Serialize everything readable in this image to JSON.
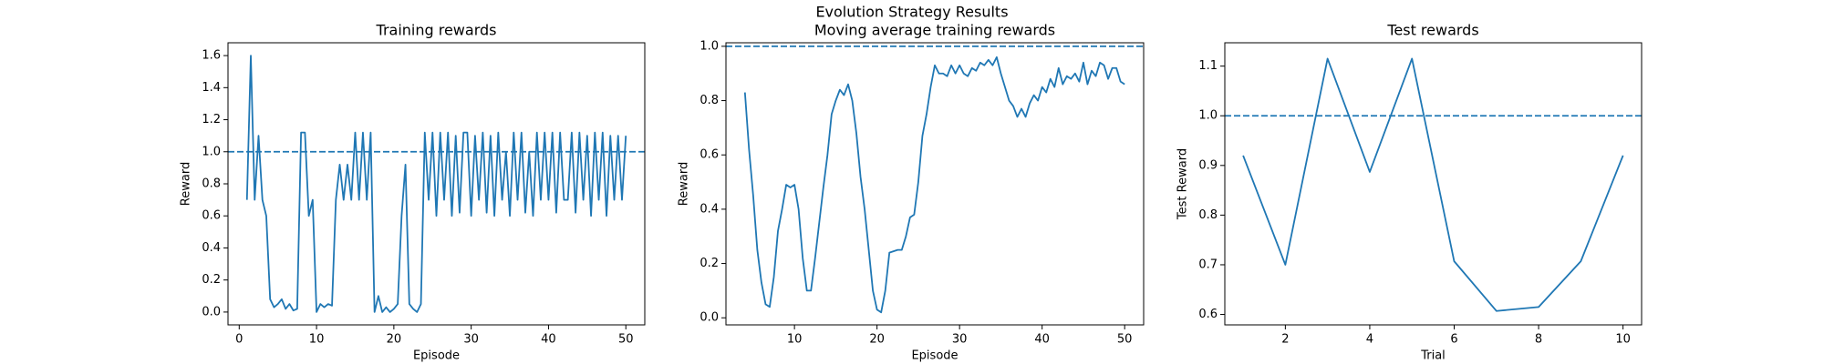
{
  "figure_title": "Evolution Strategy Results",
  "chart_data": [
    {
      "type": "line",
      "title": "Training rewards",
      "xlabel": "Episode",
      "ylabel": "Reward",
      "color": "#1f77b4",
      "x": [
        1,
        1.5,
        2,
        2.5,
        3,
        3.5,
        4,
        4.5,
        5,
        5.5,
        6,
        6.5,
        7,
        7.5,
        8,
        8.5,
        9,
        9.5,
        10,
        10.5,
        11,
        11.5,
        12,
        12.5,
        13,
        13.5,
        14,
        14.5,
        15,
        15.5,
        16,
        16.5,
        17,
        17.5,
        18,
        18.5,
        19,
        19.5,
        20,
        20.5,
        21,
        21.5,
        22,
        22.5,
        23,
        23.5,
        24,
        24.5,
        25,
        25.5,
        26,
        26.5,
        27,
        27.5,
        28,
        28.5,
        29,
        29.5,
        30,
        30.5,
        31,
        31.5,
        32,
        32.5,
        33,
        33.5,
        34,
        34.5,
        35,
        35.5,
        36,
        36.5,
        37,
        37.5,
        38,
        38.5,
        39,
        39.5,
        40,
        40.5,
        41,
        41.5,
        42,
        42.5,
        43,
        43.5,
        44,
        44.5,
        45,
        45.5,
        46,
        46.5,
        47,
        47.5,
        48,
        48.5,
        49,
        49.5,
        50
      ],
      "values": [
        0.7,
        1.6,
        0.7,
        1.1,
        0.7,
        0.6,
        0.08,
        0.03,
        0.05,
        0.08,
        0.02,
        0.05,
        0.01,
        0.02,
        1.12,
        1.12,
        0.6,
        0.7,
        0.0,
        0.05,
        0.03,
        0.05,
        0.04,
        0.7,
        0.92,
        0.7,
        0.92,
        0.7,
        1.12,
        0.7,
        1.12,
        0.7,
        1.12,
        0.0,
        0.1,
        0.0,
        0.03,
        0.0,
        0.02,
        0.05,
        0.6,
        0.92,
        0.05,
        0.02,
        0.0,
        0.05,
        1.12,
        0.7,
        1.12,
        0.6,
        1.12,
        0.7,
        1.12,
        0.6,
        1.1,
        0.62,
        1.12,
        1.12,
        0.6,
        1.1,
        0.7,
        1.12,
        0.62,
        1.1,
        0.6,
        1.12,
        0.7,
        1.0,
        0.6,
        1.12,
        0.7,
        1.12,
        0.62,
        1.0,
        0.6,
        1.12,
        0.7,
        1.12,
        0.7,
        1.12,
        0.62,
        1.12,
        0.7,
        0.7,
        1.12,
        0.62,
        1.12,
        0.7,
        1.1,
        0.6,
        1.12,
        0.7,
        1.12,
        0.6,
        1.1,
        0.7,
        1.1,
        0.7,
        1.1
      ],
      "hline": 1,
      "hline_style": "dashed",
      "xlim": [
        -1.45,
        52.45
      ],
      "ylim": [
        -0.08,
        1.68
      ],
      "xticks": [
        0,
        10,
        20,
        30,
        40,
        50
      ],
      "yticks": [
        {
          "value": 0,
          "label": "0.0"
        },
        0.2,
        0.4,
        0.6,
        0.8,
        {
          "value": 1,
          "label": "1.0"
        },
        1.2,
        1.4,
        1.6
      ]
    },
    {
      "type": "line",
      "title": "Moving average training rewards",
      "xlabel": "Episode",
      "ylabel": "Reward",
      "color": "#1f77b4",
      "x": [
        4,
        4.5,
        5,
        5.5,
        6,
        6.5,
        7,
        7.5,
        8,
        8.5,
        9,
        9.5,
        10,
        10.5,
        11,
        11.5,
        12,
        12.5,
        13,
        13.5,
        14,
        14.5,
        15,
        15.5,
        16,
        16.5,
        17,
        17.5,
        18,
        18.5,
        19,
        19.5,
        20,
        20.5,
        21,
        21.5,
        22,
        22.5,
        23,
        23.5,
        24,
        24.5,
        25,
        25.5,
        26,
        26.5,
        27,
        27.5,
        28,
        28.5,
        29,
        29.5,
        30,
        30.5,
        31,
        31.5,
        32,
        32.5,
        33,
        33.5,
        34,
        34.5,
        35,
        35.5,
        36,
        36.5,
        37,
        37.5,
        38,
        38.5,
        39,
        39.5,
        40,
        40.5,
        41,
        41.5,
        42,
        42.5,
        43,
        43.5,
        44,
        44.5,
        45,
        45.5,
        46,
        46.5,
        47,
        47.5,
        48,
        48.5,
        49,
        49.5,
        50
      ],
      "values": [
        0.83,
        0.62,
        0.45,
        0.25,
        0.13,
        0.05,
        0.04,
        0.15,
        0.32,
        0.4,
        0.49,
        0.48,
        0.49,
        0.4,
        0.22,
        0.1,
        0.1,
        0.22,
        0.35,
        0.48,
        0.6,
        0.75,
        0.8,
        0.84,
        0.82,
        0.86,
        0.8,
        0.68,
        0.52,
        0.4,
        0.25,
        0.1,
        0.03,
        0.02,
        0.1,
        0.24,
        0.245,
        0.25,
        0.25,
        0.3,
        0.37,
        0.38,
        0.5,
        0.67,
        0.75,
        0.85,
        0.93,
        0.9,
        0.9,
        0.89,
        0.93,
        0.9,
        0.93,
        0.9,
        0.89,
        0.92,
        0.91,
        0.94,
        0.93,
        0.95,
        0.93,
        0.96,
        0.9,
        0.85,
        0.8,
        0.78,
        0.74,
        0.77,
        0.74,
        0.79,
        0.82,
        0.8,
        0.85,
        0.83,
        0.88,
        0.85,
        0.92,
        0.86,
        0.89,
        0.88,
        0.9,
        0.87,
        0.94,
        0.86,
        0.91,
        0.89,
        0.94,
        0.93,
        0.88,
        0.92,
        0.92,
        0.87,
        0.86
      ],
      "hline": 1,
      "hline_style": "dashed",
      "xlim": [
        1.7,
        52.3
      ],
      "ylim": [
        -0.026,
        1.013
      ],
      "xticks": [
        10,
        20,
        30,
        40,
        50
      ],
      "yticks": [
        {
          "value": 0,
          "label": "0.0"
        },
        0.2,
        0.4,
        0.6,
        0.8,
        {
          "value": 1,
          "label": "1.0"
        }
      ]
    },
    {
      "type": "line",
      "title": "Test rewards",
      "xlabel": "Trial",
      "ylabel": "Test Reward",
      "color": "#1f77b4",
      "x": [
        1,
        2,
        3,
        4,
        5,
        6,
        7,
        8,
        9,
        10
      ],
      "values": [
        0.92,
        0.7,
        1.115,
        0.887,
        1.115,
        0.707,
        0.607,
        0.615,
        0.707,
        0.92
      ],
      "hline": 1,
      "hline_style": "dashed",
      "xlim": [
        0.566,
        10.44
      ],
      "ylim": [
        0.579,
        1.147
      ],
      "xticks": [
        2,
        4,
        6,
        8,
        10
      ],
      "yticks": [
        0.6,
        0.7,
        0.8,
        0.9,
        {
          "value": 1,
          "label": "1.0"
        },
        1.1
      ]
    }
  ]
}
